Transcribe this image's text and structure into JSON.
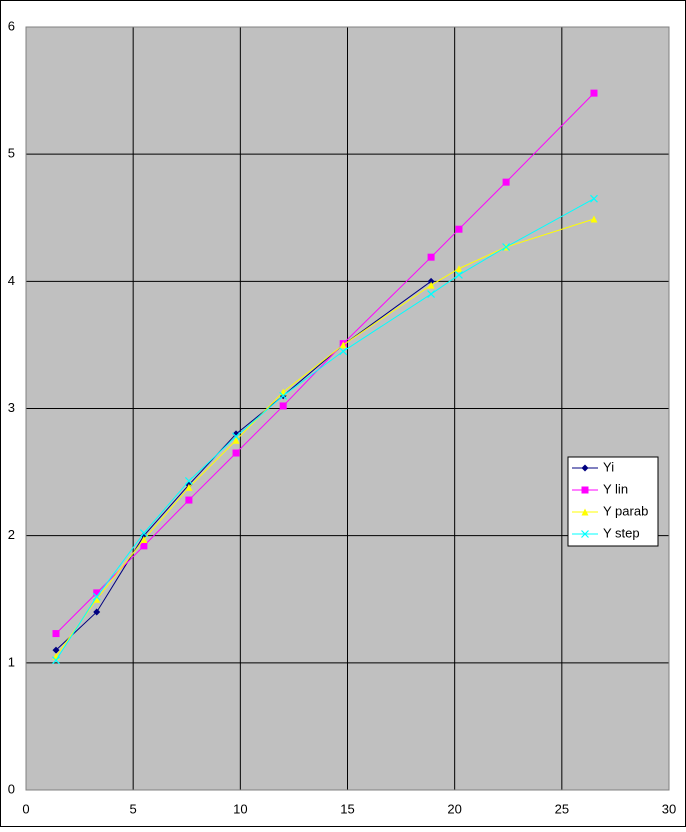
{
  "chart_data": {
    "type": "line",
    "x": [
      1.4,
      3.3,
      5.5,
      7.6,
      9.8,
      12.0,
      14.8,
      18.9,
      20.2,
      22.4,
      26.5
    ],
    "series": [
      {
        "name": "Yi",
        "color": "#000080",
        "marker": "diamond",
        "values": [
          1.1,
          1.4,
          2.0,
          2.4,
          2.8,
          3.1,
          3.5,
          4.0,
          null,
          null,
          null
        ]
      },
      {
        "name": "Y lin",
        "color": "#ff00ff",
        "marker": "square",
        "values": [
          1.23,
          1.55,
          1.92,
          2.28,
          2.65,
          3.02,
          3.51,
          4.19,
          4.41,
          4.78,
          5.48
        ]
      },
      {
        "name": "Y parab",
        "color": "#ffff00",
        "marker": "triangle",
        "values": [
          1.05,
          1.5,
          1.97,
          2.38,
          2.75,
          3.13,
          3.5,
          3.97,
          4.1,
          4.27,
          4.49
        ]
      },
      {
        "name": "Y step",
        "color": "#00ffff",
        "marker": "x",
        "values": [
          1.02,
          1.52,
          2.02,
          2.43,
          2.78,
          3.1,
          3.45,
          3.9,
          4.05,
          4.27,
          4.65
        ]
      }
    ],
    "xlim": [
      0,
      30
    ],
    "xticks": [
      0,
      5,
      10,
      15,
      20,
      25,
      30
    ],
    "ylim": [
      0,
      6
    ],
    "yticks": [
      0,
      1,
      2,
      3,
      4,
      5,
      6
    ],
    "grid": true,
    "legend": "right"
  }
}
